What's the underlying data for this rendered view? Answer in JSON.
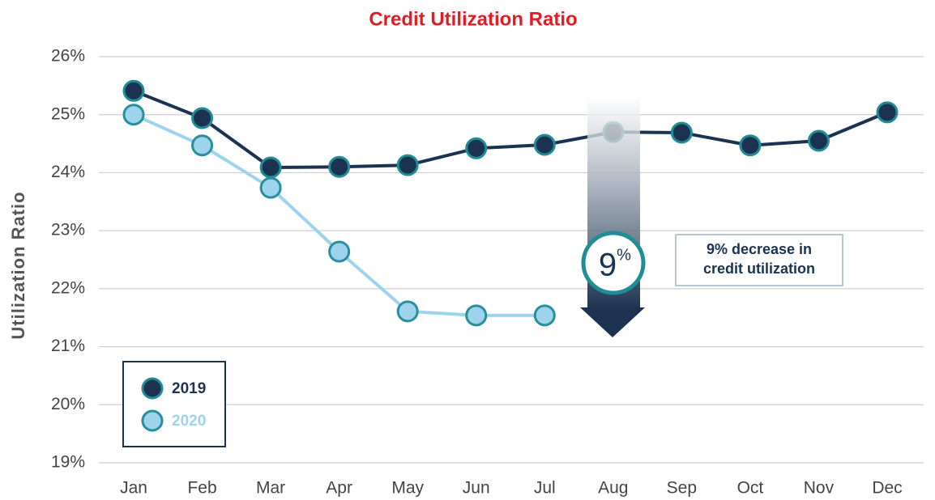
{
  "chart_data": {
    "type": "line",
    "title": "Credit Utilization Ratio",
    "y_label": "Utilization Ratio",
    "categories": [
      "Jan",
      "Feb",
      "Mar",
      "Apr",
      "May",
      "Jun",
      "Jul",
      "Aug",
      "Sep",
      "Oct",
      "Nov",
      "Dec"
    ],
    "series": [
      {
        "name": "2019",
        "color": "#1b3350",
        "marker_edge": "#1f8c96",
        "values": [
          25.41,
          24.94,
          24.09,
          24.1,
          24.13,
          24.42,
          24.48,
          24.7,
          24.69,
          24.47,
          24.55,
          25.04
        ]
      },
      {
        "name": "2020",
        "color": "#9ed3ee",
        "marker_edge": "#2a8f9a",
        "values": [
          25.0,
          24.47,
          23.74,
          22.64,
          21.61,
          21.54,
          21.54,
          null,
          null,
          null,
          null,
          null
        ]
      }
    ],
    "ylim": [
      19,
      26
    ],
    "yticks": [
      {
        "value": 19,
        "label": "19%"
      },
      {
        "value": 20,
        "label": "20%"
      },
      {
        "value": 21,
        "label": "21%"
      },
      {
        "value": 22,
        "label": "22%"
      },
      {
        "value": 23,
        "label": "23%"
      },
      {
        "value": 24,
        "label": "24%"
      },
      {
        "value": 25,
        "label": "25%"
      },
      {
        "value": 26,
        "label": "26%"
      }
    ],
    "grid": true,
    "legend": "lower left",
    "annotations": {
      "arrow_number": "9",
      "arrow_unit": "%",
      "callout": [
        "9% decrease in",
        "credit utilization"
      ]
    }
  }
}
